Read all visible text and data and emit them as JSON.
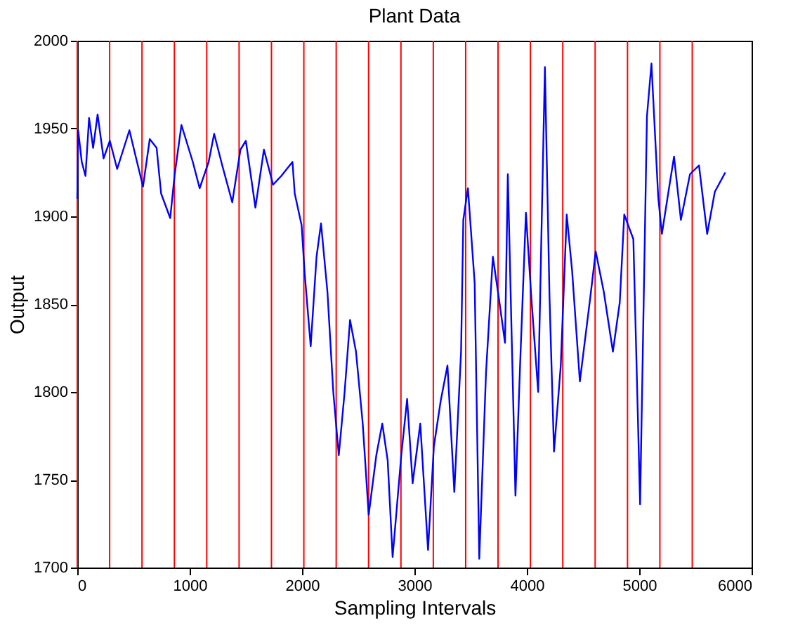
{
  "chart_data": {
    "type": "line",
    "title": "Plant Data",
    "xlabel": "Sampling Intervals",
    "ylabel": "Output",
    "xlim": [
      0,
      6000
    ],
    "xticks": [
      0,
      1000,
      2000,
      3000,
      4000,
      5000,
      6000
    ],
    "ylim": [
      1700,
      2000
    ],
    "yticks": [
      1700,
      1750,
      1800,
      1850,
      1900,
      1950,
      2000
    ],
    "grid": false,
    "marker": "none",
    "line_style": "solid",
    "series": [
      {
        "color": "#0000ff",
        "x": [
          0,
          8,
          40,
          73,
          105,
          141,
          181,
          234,
          290,
          355,
          464,
          524,
          585,
          645,
          706,
          746,
          827,
          867,
          927,
          1028,
          1089,
          1169,
          1218,
          1290,
          1379,
          1452,
          1500,
          1585,
          1661,
          1742,
          1815,
          1915,
          1935,
          1996,
          2024,
          2077,
          2129,
          2169,
          2226,
          2278,
          2327,
          2379,
          2427,
          2480,
          2540,
          2593,
          2661,
          2714,
          2762,
          2806,
          2883,
          2935,
          2984,
          3052,
          3121,
          3173,
          3234,
          3294,
          3355,
          3415,
          3435,
          3476,
          3536,
          3577,
          3637,
          3698,
          3750,
          3806,
          3831,
          3899,
          3940,
          3992,
          4040,
          4101,
          4161,
          4202,
          4242,
          4302,
          4355,
          4403,
          4472,
          4565,
          4613,
          4685,
          4766,
          4827,
          4867,
          4948,
          5008,
          5069,
          5109,
          5169,
          5202,
          5270,
          5310,
          5371,
          5452,
          5532,
          5605,
          5673,
          5766
        ],
        "values": [
          1910,
          1949,
          1931,
          1923,
          1956,
          1939,
          1958,
          1933,
          1943,
          1927,
          1949,
          1933,
          1917,
          1944,
          1939,
          1913,
          1899,
          1924,
          1952,
          1931,
          1916,
          1931,
          1947,
          1929,
          1908,
          1938,
          1943,
          1905,
          1938,
          1918,
          1923,
          1931,
          1913,
          1895,
          1867,
          1826,
          1877,
          1896,
          1857,
          1800,
          1764,
          1800,
          1841,
          1823,
          1782,
          1730,
          1764,
          1782,
          1761,
          1706,
          1764,
          1796,
          1748,
          1782,
          1710,
          1769,
          1795,
          1815,
          1743,
          1823,
          1898,
          1916,
          1862,
          1705,
          1811,
          1877,
          1854,
          1828,
          1924,
          1741,
          1815,
          1902,
          1854,
          1800,
          1985,
          1854,
          1766,
          1815,
          1901,
          1869,
          1806,
          1854,
          1880,
          1857,
          1823,
          1851,
          1901,
          1887,
          1736,
          1957,
          1987,
          1911,
          1890,
          1918,
          1934,
          1898,
          1924,
          1929,
          1890,
          1914,
          1925
        ]
      }
    ],
    "ref_lines": [
      {
        "axis": "x",
        "value": 0,
        "color": "#ff0000"
      },
      {
        "axis": "x",
        "value": 288,
        "color": "#ff0000"
      },
      {
        "axis": "x",
        "value": 576,
        "color": "#ff0000"
      },
      {
        "axis": "x",
        "value": 864,
        "color": "#ff0000"
      },
      {
        "axis": "x",
        "value": 1152,
        "color": "#ff0000"
      },
      {
        "axis": "x",
        "value": 1440,
        "color": "#ff0000"
      },
      {
        "axis": "x",
        "value": 1728,
        "color": "#ff0000"
      },
      {
        "axis": "x",
        "value": 2016,
        "color": "#ff0000"
      },
      {
        "axis": "x",
        "value": 2304,
        "color": "#ff0000"
      },
      {
        "axis": "x",
        "value": 2592,
        "color": "#ff0000"
      },
      {
        "axis": "x",
        "value": 2880,
        "color": "#ff0000"
      },
      {
        "axis": "x",
        "value": 3168,
        "color": "#ff0000"
      },
      {
        "axis": "x",
        "value": 3456,
        "color": "#ff0000"
      },
      {
        "axis": "x",
        "value": 3744,
        "color": "#ff0000"
      },
      {
        "axis": "x",
        "value": 4032,
        "color": "#ff0000"
      },
      {
        "axis": "x",
        "value": 4320,
        "color": "#ff0000"
      },
      {
        "axis": "x",
        "value": 4608,
        "color": "#ff0000"
      },
      {
        "axis": "x",
        "value": 4896,
        "color": "#ff0000"
      },
      {
        "axis": "x",
        "value": 5184,
        "color": "#ff0000"
      },
      {
        "axis": "x",
        "value": 5472,
        "color": "#ff0000"
      }
    ]
  }
}
